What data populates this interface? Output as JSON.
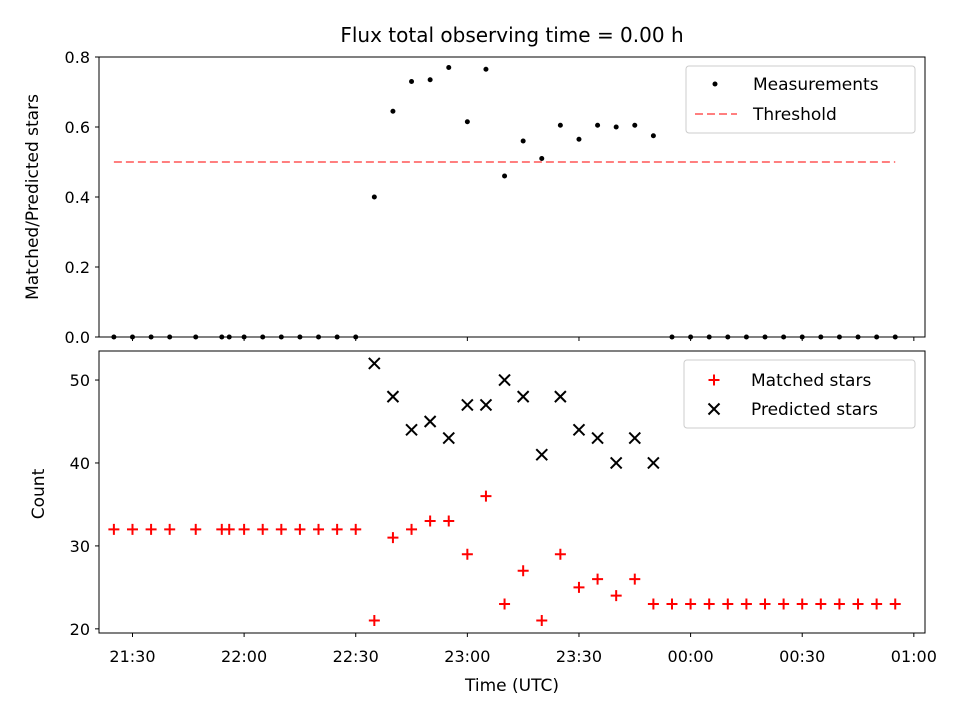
{
  "chart_data": [
    {
      "type": "scatter",
      "title": "Flux total observing time = 0.00 h",
      "ylabel": "Matched/Predicted stars",
      "ylim": [
        0,
        0.8
      ],
      "yticks": [
        0.0,
        0.2,
        0.4,
        0.6,
        0.8
      ],
      "ytick_labels": [
        "0.0",
        "0.2",
        "0.4",
        "0.6",
        "0.8"
      ],
      "legend": "top-right",
      "series": [
        {
          "name": "Measurements",
          "marker": "dot",
          "color": "#000000",
          "x": [
            "21:25",
            "21:30",
            "21:35",
            "21:40",
            "21:47",
            "21:54",
            "21:56",
            "22:00",
            "22:05",
            "22:10",
            "22:15",
            "22:20",
            "22:25",
            "22:30",
            "22:35",
            "22:40",
            "22:45",
            "22:50",
            "22:55",
            "23:00",
            "23:05",
            "23:10",
            "23:15",
            "23:20",
            "23:25",
            "23:30",
            "23:35",
            "23:40",
            "23:45",
            "23:50",
            "23:55",
            "00:00",
            "00:05",
            "00:10",
            "00:15",
            "00:20",
            "00:25",
            "00:30",
            "00:35",
            "00:40",
            "00:45",
            "00:50",
            "00:55"
          ],
          "y": [
            0,
            0,
            0,
            0,
            0,
            0,
            0,
            0,
            0,
            0,
            0,
            0,
            0,
            0,
            0.4,
            0.645,
            0.73,
            0.735,
            0.77,
            0.615,
            0.765,
            0.46,
            0.56,
            0.51,
            0.605,
            0.565,
            0.605,
            0.6,
            0.605,
            0.575,
            0,
            0,
            0,
            0,
            0,
            0,
            0,
            0,
            0,
            0,
            0,
            0,
            0
          ]
        },
        {
          "name": "Threshold",
          "style": "dashed",
          "color": "#ff7f7f",
          "x": [
            "21:25",
            "00:55"
          ],
          "y": [
            0.5,
            0.5
          ]
        }
      ]
    },
    {
      "type": "scatter",
      "xlabel": "Time (UTC)",
      "ylabel": "Count",
      "ylim": [
        19.5,
        53.5
      ],
      "yticks": [
        20,
        30,
        40,
        50
      ],
      "xlim": [
        "21:21",
        "01:03"
      ],
      "xticks": [
        "21:30",
        "22:00",
        "22:30",
        "23:00",
        "23:30",
        "00:00",
        "00:30",
        "01:00"
      ],
      "legend": "top-right",
      "series": [
        {
          "name": "Matched stars",
          "marker": "plus",
          "color": "#ff0000",
          "x": [
            "21:25",
            "21:30",
            "21:35",
            "21:40",
            "21:47",
            "21:54",
            "21:56",
            "22:00",
            "22:05",
            "22:10",
            "22:15",
            "22:20",
            "22:25",
            "22:30",
            "22:35",
            "22:40",
            "22:45",
            "22:50",
            "22:55",
            "23:00",
            "23:05",
            "23:10",
            "23:15",
            "23:20",
            "23:25",
            "23:30",
            "23:35",
            "23:40",
            "23:45",
            "23:50",
            "23:55",
            "00:00",
            "00:05",
            "00:10",
            "00:15",
            "00:20",
            "00:25",
            "00:30",
            "00:35",
            "00:40",
            "00:45",
            "00:50",
            "00:55"
          ],
          "y": [
            32,
            32,
            32,
            32,
            32,
            32,
            32,
            32,
            32,
            32,
            32,
            32,
            32,
            32,
            21,
            31,
            32,
            33,
            33,
            29,
            36,
            23,
            27,
            21,
            29,
            25,
            26,
            24,
            26,
            23,
            23,
            23,
            23,
            23,
            23,
            23,
            23,
            23,
            23,
            23,
            23,
            23,
            23
          ]
        },
        {
          "name": "Predicted stars",
          "marker": "x",
          "color": "#000000",
          "x": [
            "22:35",
            "22:40",
            "22:45",
            "22:50",
            "22:55",
            "23:00",
            "23:05",
            "23:10",
            "23:15",
            "23:20",
            "23:25",
            "23:30",
            "23:35",
            "23:40",
            "23:45",
            "23:50"
          ],
          "y": [
            52,
            48,
            44,
            45,
            43,
            47,
            47,
            50,
            48,
            41,
            48,
            44,
            43,
            40,
            43,
            40
          ]
        }
      ]
    }
  ]
}
